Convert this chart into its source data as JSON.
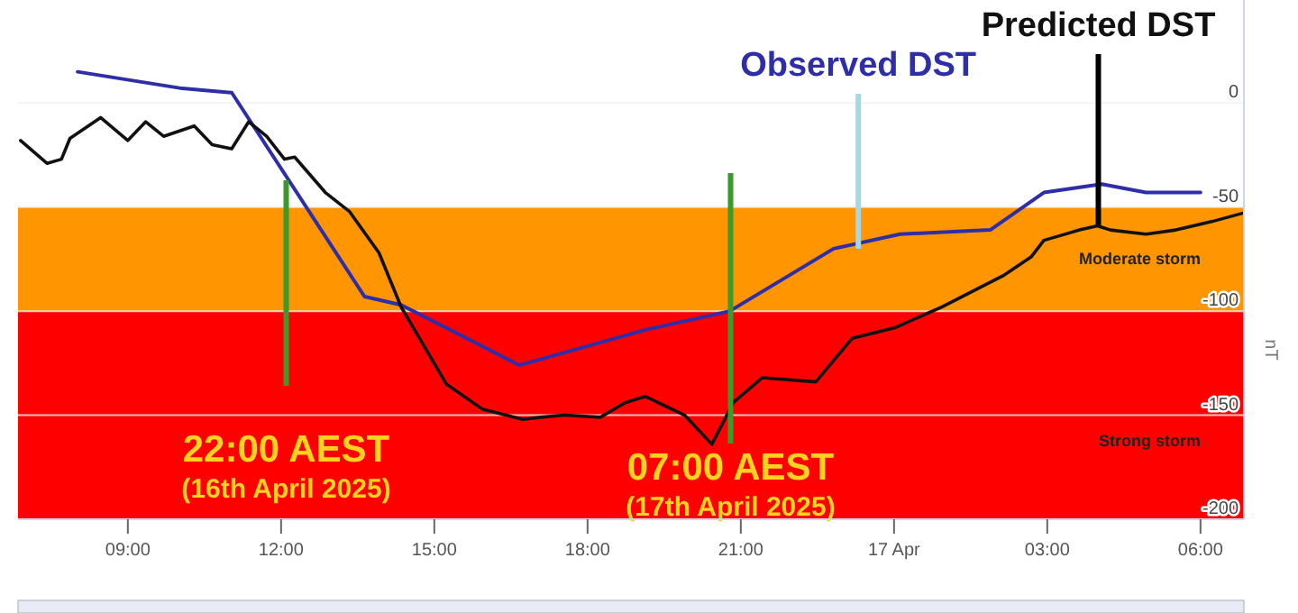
{
  "chart_data": {
    "type": "line",
    "ylabel": "nT",
    "xlim": [
      "2025-04-16T06:51",
      "2025-04-17T06:51"
    ],
    "xticks": [
      {
        "value": "2025-04-16T09:00",
        "label": "09:00"
      },
      {
        "value": "2025-04-16T12:00",
        "label": "12:00"
      },
      {
        "value": "2025-04-16T15:00",
        "label": "15:00"
      },
      {
        "value": "2025-04-16T18:00",
        "label": "18:00"
      },
      {
        "value": "2025-04-16T21:00",
        "label": "21:00"
      },
      {
        "value": "2025-04-17",
        "label": "17 Apr"
      },
      {
        "value": "2025-04-17T03:00",
        "label": "03:00"
      },
      {
        "value": "2025-04-17T06:00",
        "label": "06:00"
      }
    ],
    "ylim": [
      -200,
      49.5
    ],
    "yticks": [
      0,
      -50,
      -100,
      -150,
      -200
    ],
    "grid": "y",
    "series": [
      {
        "color": "#2e2ea8",
        "x": [
          "2025-04-16T08:01",
          "2025-04-16T10:04",
          "2025-04-16T11:02",
          "2025-04-16T13:38",
          "2025-04-16T14:21",
          "2025-04-16T16:40",
          "2025-04-16T19:08",
          "2025-04-16T20:47",
          "2025-04-16T22:49",
          "2025-04-17T00:07",
          "2025-04-17T01:53",
          "2025-04-17T02:56",
          "2025-04-17T04:04",
          "2025-04-17T04:56",
          "2025-04-17T06:00"
        ],
        "values": [
          15,
          7,
          5,
          -93,
          -97,
          -126,
          -109,
          -100,
          -70,
          -63,
          -61,
          -43,
          -39,
          -43,
          -43
        ]
      },
      {
        "color": "#111111",
        "x": [
          "2025-04-16T06:54",
          "2025-04-16T07:25",
          "2025-04-16T07:42",
          "2025-04-16T07:52",
          "2025-04-16T08:28",
          "2025-04-16T09:00",
          "2025-04-16T09:21",
          "2025-04-16T09:42",
          "2025-04-16T10:18",
          "2025-04-16T10:39",
          "2025-04-16T11:02",
          "2025-04-16T11:22",
          "2025-04-16T11:43",
          "2025-04-16T12:04",
          "2025-04-16T12:16",
          "2025-04-16T12:52",
          "2025-04-16T13:20",
          "2025-04-16T13:55",
          "2025-04-16T14:21",
          "2025-04-16T15:14",
          "2025-04-16T15:56",
          "2025-04-16T16:44",
          "2025-04-16T17:05",
          "2025-04-16T17:33",
          "2025-04-16T18:15",
          "2025-04-16T18:44",
          "2025-04-16T19:08",
          "2025-04-16T19:54",
          "2025-04-16T20:26",
          "2025-04-16T20:51",
          "2025-04-16T21:25",
          "2025-04-16T22:28",
          "2025-04-16T23:11",
          "2025-04-17T00:01",
          "2025-04-17T00:56",
          "2025-04-17T02:08",
          "2025-04-17T02:41",
          "2025-04-17T02:56",
          "2025-04-17T03:38",
          "2025-04-17T03:59",
          "2025-04-17T04:14",
          "2025-04-17T04:56",
          "2025-04-17T05:31",
          "2025-04-17T06:13",
          "2025-04-17T06:49"
        ],
        "values": [
          -18,
          -29,
          -27,
          -17,
          -7,
          -18,
          -9,
          -16,
          -11,
          -20,
          -22,
          -9,
          -16,
          -27,
          -26,
          -43,
          -52,
          -72,
          -98,
          -135,
          -147,
          -152,
          -151,
          -150,
          -151,
          -144,
          -141,
          -150,
          -164,
          -144,
          -132,
          -134,
          -113,
          -108,
          -98,
          -83,
          -74,
          -66,
          -61,
          -59,
          -61,
          -63,
          -61,
          -57,
          -53
        ]
      }
    ],
    "bands": [
      {
        "axis": "y",
        "from": -50,
        "to": -100,
        "label": "Moderate storm",
        "color": "#ff9500"
      },
      {
        "axis": "y",
        "from": -100,
        "to": -200,
        "label": "Strong storm",
        "color": "#ff0000"
      }
    ],
    "ref_lines": [
      {
        "axis": "x",
        "value": "2025-04-16T12:06",
        "label": "22:00 AEST\n(16th April 2025)",
        "color": "#3a9a2a"
      },
      {
        "axis": "x",
        "value": "2025-04-16T20:48",
        "label": "07:00 AEST\n(17th April 2025)",
        "color": "#3a9a2a"
      }
    ],
    "annotations": [
      {
        "text": "Observed DST",
        "x": "2025-04-16T23:18",
        "y": -70
      },
      {
        "text": "Predicted DST",
        "x": "2025-04-17T04:00",
        "y": -59
      }
    ]
  }
}
